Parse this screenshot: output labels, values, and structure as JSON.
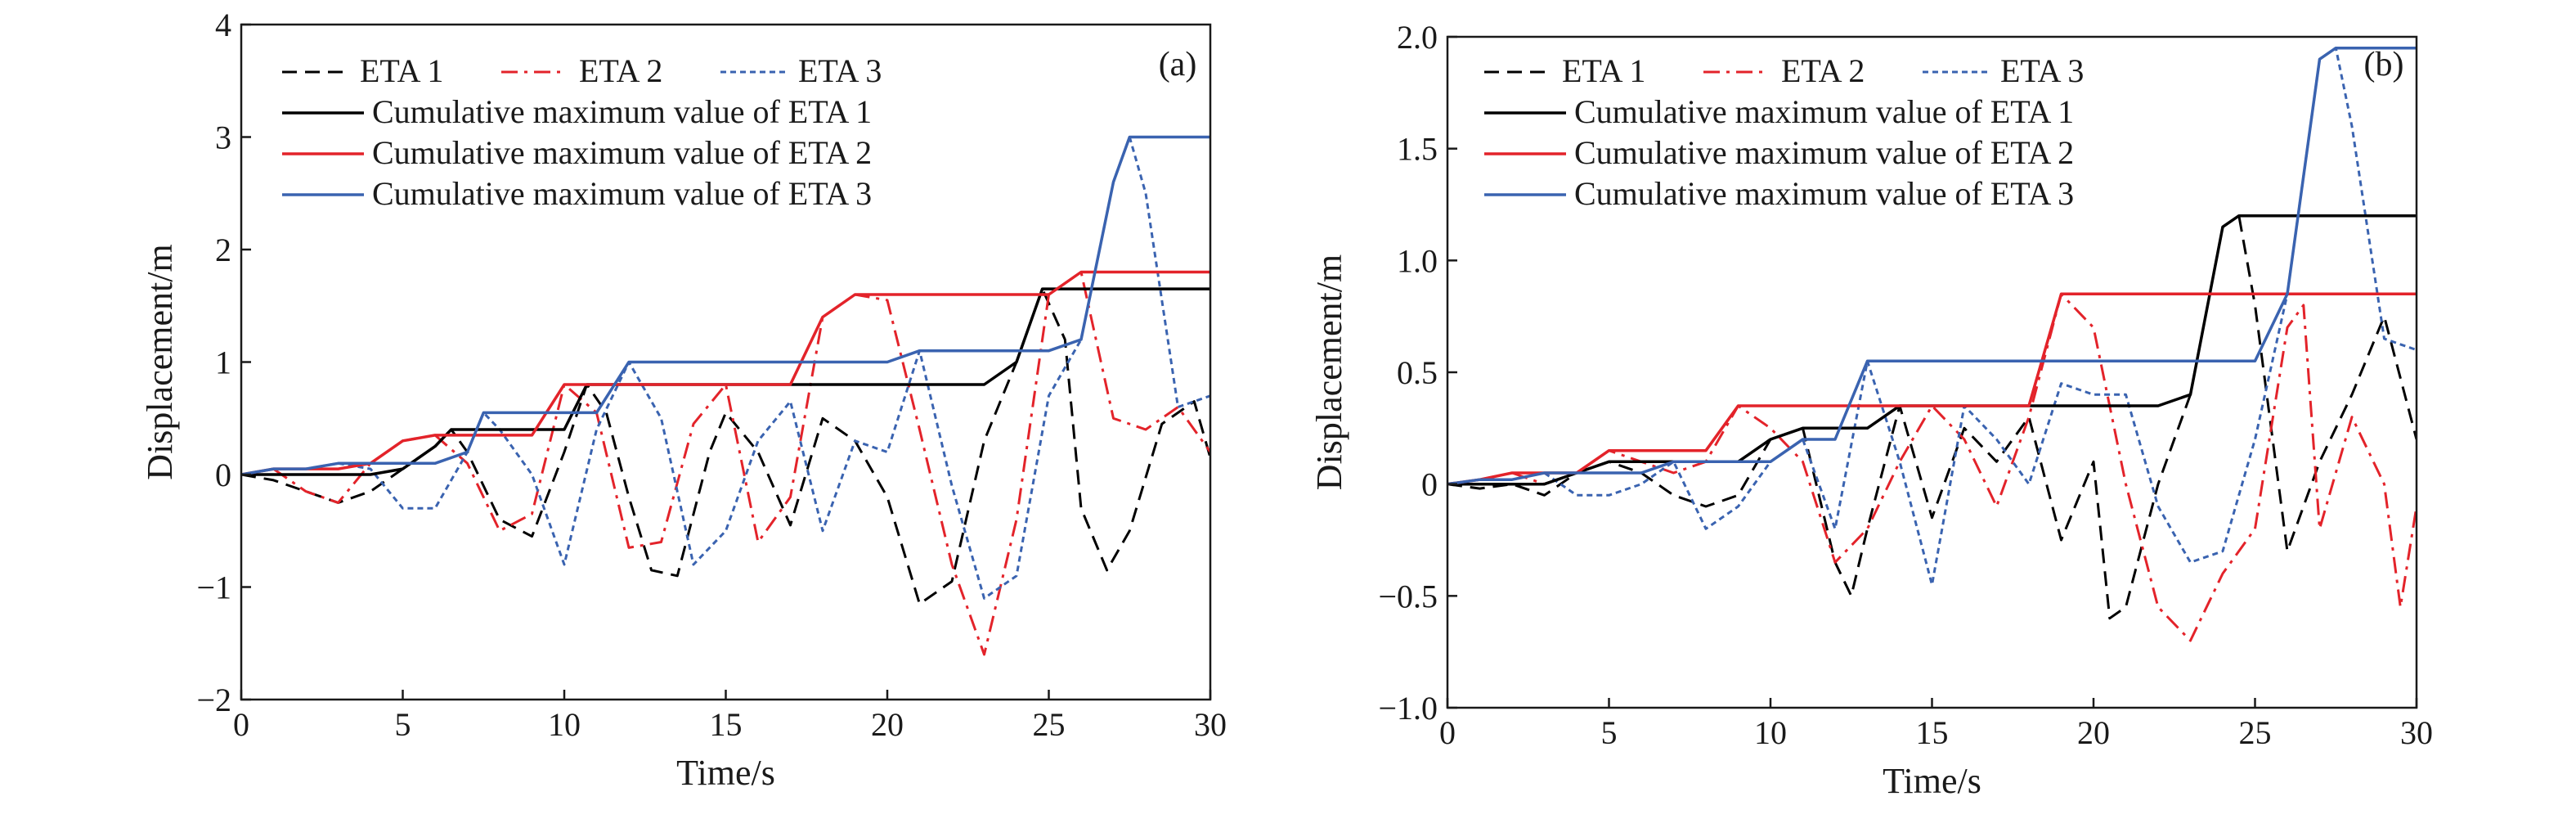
{
  "chart_data": [
    {
      "type": "line",
      "panel_label": "(a)",
      "xlabel": "Time/s",
      "ylabel": "Displacement/m",
      "xlim": [
        0,
        30
      ],
      "ylim": [
        -2,
        4
      ],
      "xticks": [
        0,
        5,
        10,
        15,
        20,
        25,
        30
      ],
      "yticks": [
        -2,
        -1,
        0,
        1,
        2,
        3,
        4
      ],
      "ytick_labels": [
        "−2",
        "−1",
        "0",
        "1",
        "2",
        "3",
        "4"
      ],
      "grid": false,
      "legend_position": "top-left",
      "series": [
        {
          "name": "ETA 1",
          "color": "#000000",
          "style": "dashed",
          "x": [
            0,
            1,
            2,
            3,
            4,
            5,
            6,
            6.5,
            7,
            8,
            9,
            10,
            10.7,
            11.3,
            12,
            12.7,
            13.5,
            14.5,
            15,
            16,
            17,
            18,
            19,
            20,
            21,
            22,
            23,
            24,
            24.8,
            25.5,
            26,
            26.8,
            27.5,
            28.5,
            29.5,
            30
          ],
          "y": [
            0,
            -0.05,
            -0.15,
            -0.25,
            -0.15,
            0.05,
            0.25,
            0.4,
            0.2,
            -0.4,
            -0.55,
            0.2,
            0.8,
            0.55,
            -0.2,
            -0.85,
            -0.9,
            0.2,
            0.55,
            0.2,
            -0.45,
            0.5,
            0.3,
            -0.2,
            -1.15,
            -0.95,
            0.3,
            1.0,
            1.65,
            1.2,
            -0.3,
            -0.85,
            -0.5,
            0.45,
            0.65,
            0.15
          ]
        },
        {
          "name": "ETA 2",
          "color": "#e3232a",
          "style": "dashdot",
          "x": [
            0,
            1,
            2,
            3,
            4,
            5,
            6,
            7,
            8,
            9,
            10,
            11,
            12,
            13,
            14,
            15,
            16,
            17,
            18,
            19,
            20,
            21,
            22,
            23,
            24,
            25,
            26,
            27,
            28,
            29,
            30
          ],
          "y": [
            0,
            0.05,
            -0.15,
            -0.25,
            0.1,
            0.3,
            0.35,
            0.1,
            -0.5,
            -0.35,
            0.8,
            0.55,
            -0.65,
            -0.6,
            0.45,
            0.8,
            -0.6,
            -0.2,
            1.4,
            1.6,
            1.55,
            0.4,
            -0.8,
            -1.6,
            -0.4,
            1.6,
            1.8,
            0.5,
            0.4,
            0.6,
            0.2
          ]
        },
        {
          "name": "ETA 3",
          "color": "#3a63b0",
          "style": "dotted",
          "x": [
            0,
            1,
            2,
            3,
            4,
            5,
            6,
            7,
            7.5,
            8,
            9,
            10,
            11,
            12,
            13,
            14,
            15,
            16,
            17,
            18,
            19,
            20,
            21,
            22,
            23,
            24,
            25,
            26,
            27,
            27.5,
            28,
            29,
            30
          ],
          "y": [
            0,
            0.05,
            0.05,
            0.1,
            0.05,
            -0.3,
            -0.3,
            0.2,
            0.55,
            0.4,
            0.0,
            -0.8,
            0.4,
            1.0,
            0.5,
            -0.8,
            -0.5,
            0.3,
            0.65,
            -0.5,
            0.3,
            0.2,
            1.1,
            -0.1,
            -1.1,
            -0.9,
            0.7,
            1.2,
            2.6,
            3.0,
            2.5,
            0.6,
            0.7
          ]
        },
        {
          "name": "Cumulative maximum value of ETA 1",
          "color": "#000000",
          "style": "solid",
          "x": [
            0,
            1,
            2,
            3,
            4,
            5,
            6,
            6.5,
            7,
            8,
            9,
            10,
            10.7,
            11.3,
            12,
            12.7,
            13.5,
            14.5,
            15,
            16,
            17,
            18,
            19,
            20,
            21,
            22,
            23,
            24,
            24.8,
            25.5,
            26,
            26.8,
            27.5,
            28.5,
            29.5,
            30
          ],
          "y": [
            0,
            0,
            0,
            0,
            0,
            0.05,
            0.25,
            0.4,
            0.4,
            0.4,
            0.4,
            0.4,
            0.8,
            0.8,
            0.8,
            0.8,
            0.8,
            0.8,
            0.8,
            0.8,
            0.8,
            0.8,
            0.8,
            0.8,
            0.8,
            0.8,
            0.8,
            1.0,
            1.65,
            1.65,
            1.65,
            1.65,
            1.65,
            1.65,
            1.65,
            1.65
          ]
        },
        {
          "name": "Cumulative maximum value of ETA 2",
          "color": "#e3232a",
          "style": "solid",
          "x": [
            0,
            1,
            2,
            3,
            4,
            5,
            6,
            7,
            8,
            9,
            10,
            11,
            12,
            13,
            14,
            15,
            16,
            17,
            18,
            19,
            20,
            21,
            22,
            23,
            24,
            25,
            26,
            27,
            28,
            29,
            30
          ],
          "y": [
            0,
            0.05,
            0.05,
            0.05,
            0.1,
            0.3,
            0.35,
            0.35,
            0.35,
            0.35,
            0.8,
            0.8,
            0.8,
            0.8,
            0.8,
            0.8,
            0.8,
            0.8,
            1.4,
            1.6,
            1.6,
            1.6,
            1.6,
            1.6,
            1.6,
            1.6,
            1.8,
            1.8,
            1.8,
            1.8,
            1.8
          ]
        },
        {
          "name": "Cumulative maximum value of ETA 3",
          "color": "#3a63b0",
          "style": "solid",
          "x": [
            0,
            1,
            2,
            3,
            4,
            5,
            6,
            7,
            7.5,
            8,
            9,
            10,
            11,
            12,
            13,
            14,
            15,
            16,
            17,
            18,
            19,
            20,
            21,
            22,
            23,
            24,
            25,
            26,
            27,
            27.5,
            28,
            29,
            30
          ],
          "y": [
            0,
            0.05,
            0.05,
            0.1,
            0.1,
            0.1,
            0.1,
            0.2,
            0.55,
            0.55,
            0.55,
            0.55,
            0.55,
            1.0,
            1.0,
            1.0,
            1.0,
            1.0,
            1.0,
            1.0,
            1.0,
            1.0,
            1.1,
            1.1,
            1.1,
            1.1,
            1.1,
            1.2,
            2.6,
            3.0,
            3.0,
            3.0,
            3.0
          ]
        }
      ]
    },
    {
      "type": "line",
      "panel_label": "(b)",
      "xlabel": "Time/s",
      "ylabel": "Displacement/m",
      "xlim": [
        0,
        30
      ],
      "ylim": [
        -1.0,
        2.0
      ],
      "xticks": [
        0,
        5,
        10,
        15,
        20,
        25,
        30
      ],
      "yticks": [
        -1.0,
        -0.5,
        0,
        0.5,
        1.0,
        1.5,
        2.0
      ],
      "ytick_labels": [
        "−1.0",
        "−0.5",
        "0",
        "0.5",
        "1.0",
        "1.5",
        "2.0"
      ],
      "grid": false,
      "legend_position": "top-left",
      "series": [
        {
          "name": "ETA 1",
          "color": "#000000",
          "style": "dashed",
          "x": [
            0,
            1,
            2,
            3,
            4,
            5,
            6,
            7,
            8,
            9,
            10,
            11,
            12,
            12.5,
            13,
            14,
            15,
            16,
            17,
            18,
            19,
            20,
            20.5,
            21,
            22,
            23,
            24,
            24.5,
            25,
            26,
            27,
            28,
            29,
            30
          ],
          "y": [
            0,
            -0.02,
            0,
            -0.05,
            0.05,
            0.1,
            0.05,
            -0.05,
            -0.1,
            -0.05,
            0.2,
            0.25,
            -0.35,
            -0.5,
            -0.2,
            0.35,
            -0.15,
            0.25,
            0.1,
            0.3,
            -0.25,
            0.1,
            -0.6,
            -0.55,
            0.0,
            0.4,
            1.15,
            1.2,
            0.8,
            -0.3,
            0.1,
            0.4,
            0.75,
            0.2
          ]
        },
        {
          "name": "ETA 2",
          "color": "#e3232a",
          "style": "dashdot",
          "x": [
            0,
            1,
            2,
            3,
            4,
            5,
            6,
            7,
            8,
            9,
            10,
            11,
            12,
            13,
            14,
            15,
            16,
            17,
            18,
            19,
            20,
            21,
            22,
            23,
            24,
            25,
            26,
            26.5,
            27,
            28,
            29,
            29.5,
            30
          ],
          "y": [
            0,
            0.02,
            0.05,
            0.0,
            0.05,
            0.15,
            0.1,
            0.05,
            0.1,
            0.35,
            0.25,
            0.1,
            -0.35,
            -0.2,
            0.1,
            0.35,
            0.2,
            -0.1,
            0.3,
            0.85,
            0.7,
            0.0,
            -0.55,
            -0.7,
            -0.4,
            -0.2,
            0.7,
            0.8,
            -0.2,
            0.3,
            0.0,
            -0.55,
            -0.1
          ]
        },
        {
          "name": "ETA 3",
          "color": "#3a63b0",
          "style": "dotted",
          "x": [
            0,
            1,
            2,
            3,
            4,
            5,
            6,
            7,
            8,
            9,
            10,
            11,
            12,
            13,
            14,
            15,
            16,
            17,
            18,
            19,
            20,
            21,
            22,
            23,
            24,
            25,
            26,
            27,
            27.5,
            28,
            29,
            30
          ],
          "y": [
            0,
            0.02,
            0.02,
            0.05,
            -0.05,
            -0.05,
            0.0,
            0.1,
            -0.2,
            -0.1,
            0.1,
            0.2,
            -0.2,
            0.55,
            0.1,
            -0.45,
            0.35,
            0.2,
            0.0,
            0.45,
            0.4,
            0.4,
            -0.1,
            -0.35,
            -0.3,
            0.2,
            0.85,
            1.9,
            1.95,
            1.6,
            0.65,
            0.6
          ]
        },
        {
          "name": "Cumulative maximum value of ETA 1",
          "color": "#000000",
          "style": "solid",
          "x": [
            0,
            1,
            2,
            3,
            4,
            5,
            6,
            7,
            8,
            9,
            10,
            11,
            12,
            12.5,
            13,
            14,
            15,
            16,
            17,
            18,
            19,
            20,
            20.5,
            21,
            22,
            23,
            24,
            24.5,
            25,
            26,
            27,
            28,
            29,
            30
          ],
          "y": [
            0,
            0,
            0,
            0,
            0.05,
            0.1,
            0.1,
            0.1,
            0.1,
            0.1,
            0.2,
            0.25,
            0.25,
            0.25,
            0.25,
            0.35,
            0.35,
            0.35,
            0.35,
            0.35,
            0.35,
            0.35,
            0.35,
            0.35,
            0.35,
            0.4,
            1.15,
            1.2,
            1.2,
            1.2,
            1.2,
            1.2,
            1.2,
            1.2
          ]
        },
        {
          "name": "Cumulative maximum value of ETA 2",
          "color": "#e3232a",
          "style": "solid",
          "x": [
            0,
            1,
            2,
            3,
            4,
            5,
            6,
            7,
            8,
            9,
            10,
            11,
            12,
            13,
            14,
            15,
            16,
            17,
            18,
            19,
            20,
            21,
            22,
            23,
            24,
            25,
            26,
            26.5,
            27,
            28,
            29,
            29.5,
            30
          ],
          "y": [
            0,
            0.02,
            0.05,
            0.05,
            0.05,
            0.15,
            0.15,
            0.15,
            0.15,
            0.35,
            0.35,
            0.35,
            0.35,
            0.35,
            0.35,
            0.35,
            0.35,
            0.35,
            0.35,
            0.85,
            0.85,
            0.85,
            0.85,
            0.85,
            0.85,
            0.85,
            0.85,
            0.85,
            0.85,
            0.85,
            0.85,
            0.85,
            0.85
          ]
        },
        {
          "name": "Cumulative maximum value of ETA 3",
          "color": "#3a63b0",
          "style": "solid",
          "x": [
            0,
            1,
            2,
            3,
            4,
            5,
            6,
            7,
            8,
            9,
            10,
            11,
            12,
            13,
            14,
            15,
            16,
            17,
            18,
            19,
            20,
            21,
            22,
            23,
            24,
            25,
            26,
            27,
            27.5,
            28,
            29,
            30
          ],
          "y": [
            0,
            0.02,
            0.02,
            0.05,
            0.05,
            0.05,
            0.05,
            0.1,
            0.1,
            0.1,
            0.1,
            0.2,
            0.2,
            0.55,
            0.55,
            0.55,
            0.55,
            0.55,
            0.55,
            0.55,
            0.55,
            0.55,
            0.55,
            0.55,
            0.55,
            0.55,
            0.85,
            1.9,
            1.95,
            1.95,
            1.95,
            1.95
          ]
        }
      ]
    }
  ]
}
